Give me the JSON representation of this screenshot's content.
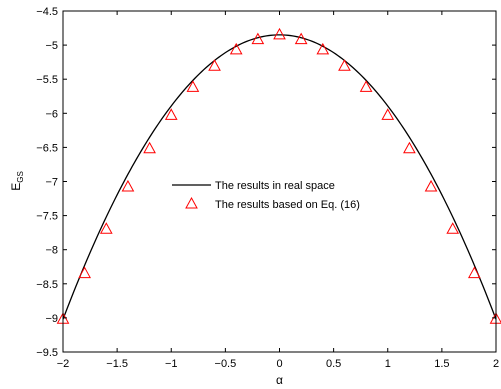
{
  "chart_data": {
    "type": "line",
    "title": "",
    "xlabel": "α",
    "ylabel": "E",
    "ylabel_sub": "GS",
    "xlim": [
      -2,
      2
    ],
    "ylim": [
      -9.5,
      -4.5
    ],
    "xticks": [
      -2,
      -1.5,
      -1,
      -0.5,
      0,
      0.5,
      1,
      1.5,
      2
    ],
    "yticks": [
      -9.5,
      -9,
      -8.5,
      -8,
      -7.5,
      -7,
      -6.5,
      -6,
      -5.5,
      -5,
      -4.5
    ],
    "xtick_labels": [
      "−2",
      "−1.5",
      "−1",
      "−0.5",
      "0",
      "0.5",
      "1",
      "1.5",
      "2"
    ],
    "ytick_labels": [
      "−9.5",
      "−9",
      "−8.5",
      "−8",
      "−7.5",
      "−7",
      "−6.5",
      "−6",
      "−5.5",
      "−5",
      "−4.5"
    ],
    "grid": false,
    "legend_position": "center",
    "series": [
      {
        "name": "The results in real space",
        "style": "solid-line",
        "color": "#000000",
        "x": [
          -2,
          -1.8,
          -1.6,
          -1.4,
          -1.2,
          -1,
          -0.8,
          -0.6,
          -0.4,
          -0.2,
          0,
          0.2,
          0.4,
          0.6,
          0.8,
          1,
          1.2,
          1.4,
          1.6,
          1.8,
          2
        ],
        "y": [
          -9.02,
          -8.35,
          -7.7,
          -7.08,
          -6.52,
          -6.03,
          -5.62,
          -5.31,
          -5.07,
          -4.92,
          -4.85,
          -4.92,
          -5.07,
          -5.31,
          -5.62,
          -6.03,
          -6.52,
          -7.08,
          -7.7,
          -8.35,
          -9.02
        ]
      },
      {
        "name": "The results based on Eq. (16)",
        "style": "triangle-markers",
        "color": "#ff0000",
        "x": [
          -2,
          -1.8,
          -1.6,
          -1.4,
          -1.2,
          -1,
          -0.8,
          -0.6,
          -0.4,
          -0.2,
          0,
          0.2,
          0.4,
          0.6,
          0.8,
          1,
          1.2,
          1.4,
          1.6,
          1.8,
          2
        ],
        "y": [
          -9.02,
          -8.35,
          -7.7,
          -7.08,
          -6.52,
          -6.03,
          -5.62,
          -5.31,
          -5.07,
          -4.92,
          -4.85,
          -4.92,
          -5.07,
          -5.31,
          -5.62,
          -6.03,
          -6.52,
          -7.08,
          -7.7,
          -8.35,
          -9.02
        ]
      }
    ]
  }
}
